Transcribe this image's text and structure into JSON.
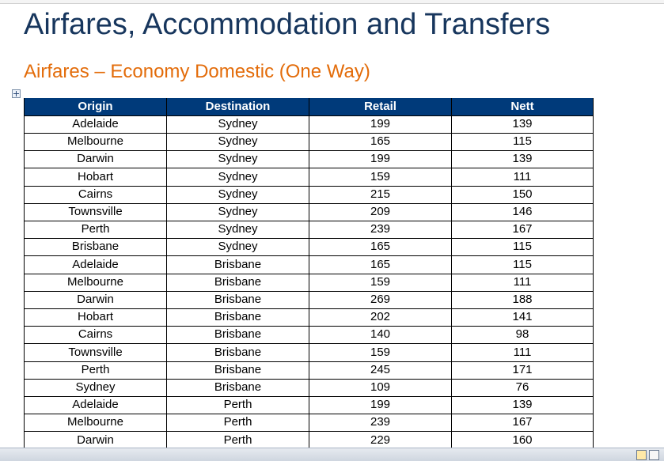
{
  "header": {
    "title": "Airfares, Accommodation and Transfers",
    "subtitle": "Airfares – Economy Domestic (One Way)"
  },
  "table": {
    "header": [
      "Origin",
      "Destination",
      "Retail",
      "Nett"
    ],
    "rows": [
      [
        "Adelaide",
        "Sydney",
        199,
        139
      ],
      [
        "Melbourne",
        "Sydney",
        165,
        115
      ],
      [
        "Darwin",
        "Sydney",
        199,
        139
      ],
      [
        "Hobart",
        "Sydney",
        159,
        111
      ],
      [
        "Cairns",
        "Sydney",
        215,
        150
      ],
      [
        "Townsville",
        "Sydney",
        209,
        146
      ],
      [
        "Perth",
        "Sydney",
        239,
        167
      ],
      [
        "Brisbane",
        "Sydney",
        165,
        115
      ],
      [
        "Adelaide",
        "Brisbane",
        165,
        115
      ],
      [
        "Melbourne",
        "Brisbane",
        159,
        111
      ],
      [
        "Darwin",
        "Brisbane",
        269,
        188
      ],
      [
        "Hobart",
        "Brisbane",
        202,
        141
      ],
      [
        "Cairns",
        "Brisbane",
        140,
        98
      ],
      [
        "Townsville",
        "Brisbane",
        159,
        111
      ],
      [
        "Perth",
        "Brisbane",
        245,
        171
      ],
      [
        "Sydney",
        "Brisbane",
        109,
        76
      ],
      [
        "Adelaide",
        "Perth",
        199,
        139
      ],
      [
        "Melbourne",
        "Perth",
        239,
        167
      ],
      [
        "Darwin",
        "Perth",
        229,
        160
      ]
    ]
  }
}
